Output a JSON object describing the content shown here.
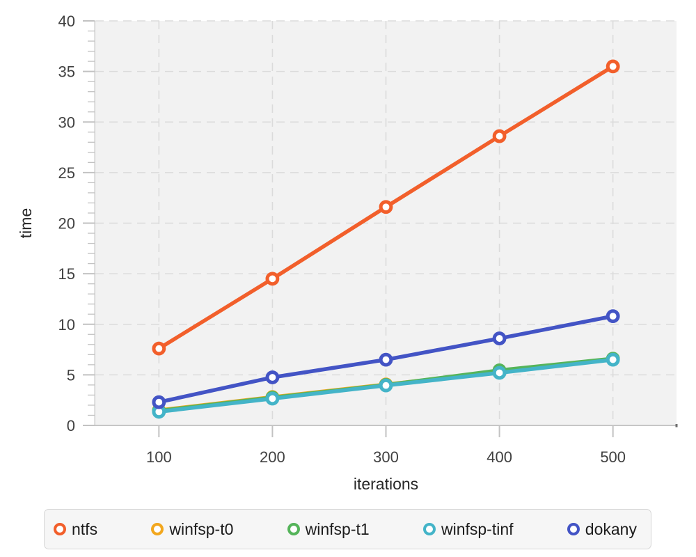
{
  "chart_data": {
    "type": "line",
    "title": "",
    "xlabel": "iterations",
    "ylabel": "time",
    "x": [
      100,
      200,
      300,
      400,
      500
    ],
    "series": [
      {
        "name": "ntfs",
        "color": "#f25f2b",
        "values": [
          7.6,
          14.5,
          21.6,
          28.6,
          35.5
        ]
      },
      {
        "name": "winfsp-t0",
        "color": "#f2a71e",
        "values": [
          1.5,
          2.8,
          4.05,
          5.3,
          6.55
        ]
      },
      {
        "name": "winfsp-t1",
        "color": "#55b45a",
        "values": [
          1.45,
          2.75,
          4.0,
          5.45,
          6.6
        ]
      },
      {
        "name": "winfsp-tinf",
        "color": "#44b4c8",
        "values": [
          1.35,
          2.65,
          3.95,
          5.2,
          6.5
        ]
      },
      {
        "name": "dokany",
        "color": "#4354c5",
        "values": [
          2.3,
          4.75,
          6.5,
          8.6,
          10.8
        ]
      }
    ],
    "xlim": [
      44,
      556
    ],
    "ylim": [
      0,
      40
    ],
    "x_ticks": [
      100,
      200,
      300,
      400,
      500
    ],
    "y_major_ticks": [
      0,
      5,
      10,
      15,
      20,
      25,
      30,
      35,
      40
    ],
    "y_minor_step": 1,
    "grid": true,
    "legend_position": "bottom",
    "marker": "open-circle"
  },
  "style": {
    "plot_bg": "#f2f2f2",
    "page_bg": "#ffffff",
    "grid_color": "#dbdbdb",
    "axis_line_color": "#c6c6c6",
    "axis_cap_color": "#6e6e6e",
    "tick_color": "#c2c2c2",
    "tick_label_color": "#404040",
    "axis_title_color": "#262626",
    "legend_bg": "#f6f6f6",
    "legend_border": "#d7d7d7",
    "legend_text_color": "#1c1c1c"
  }
}
